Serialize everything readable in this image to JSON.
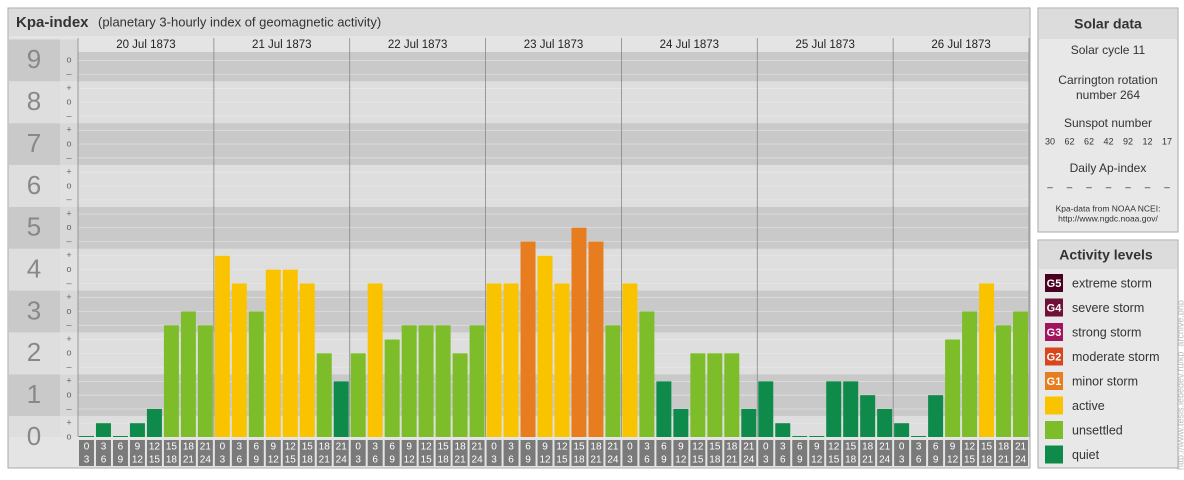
{
  "header": {
    "title": "Kpa-index",
    "subtitle": "(planetary 3-hourly index of geomagnetic activity)"
  },
  "chart_data": {
    "type": "bar",
    "ylim": [
      0,
      9.2
    ],
    "yticks": [
      0,
      1,
      2,
      3,
      4,
      5,
      6,
      7,
      8,
      9
    ],
    "minor_ticks": [
      {
        "value": 0,
        "label": "o"
      },
      {
        "value": 0.33,
        "label": "+"
      },
      {
        "value": 0.67,
        "label": "–"
      },
      {
        "value": 1,
        "label": "o"
      },
      {
        "value": 1.33,
        "label": "+"
      },
      {
        "value": 1.67,
        "label": "–"
      },
      {
        "value": 2,
        "label": "o"
      },
      {
        "value": 2.33,
        "label": "+"
      },
      {
        "value": 2.67,
        "label": "–"
      },
      {
        "value": 3,
        "label": "o"
      },
      {
        "value": 3.33,
        "label": "+"
      },
      {
        "value": 3.67,
        "label": "–"
      },
      {
        "value": 4,
        "label": "o"
      },
      {
        "value": 4.33,
        "label": "+"
      },
      {
        "value": 4.67,
        "label": "–"
      },
      {
        "value": 5,
        "label": "o"
      },
      {
        "value": 5.33,
        "label": "+"
      },
      {
        "value": 5.67,
        "label": "–"
      },
      {
        "value": 6,
        "label": "o"
      },
      {
        "value": 6.33,
        "label": "+"
      },
      {
        "value": 6.67,
        "label": "–"
      },
      {
        "value": 7,
        "label": "o"
      },
      {
        "value": 7.33,
        "label": "+"
      },
      {
        "value": 7.67,
        "label": "–"
      },
      {
        "value": 8,
        "label": "o"
      },
      {
        "value": 8.33,
        "label": "+"
      },
      {
        "value": 8.67,
        "label": "–"
      },
      {
        "value": 9,
        "label": "o"
      }
    ],
    "intervals": [
      {
        "from": 0,
        "to": 3
      },
      {
        "from": 3,
        "to": 6
      },
      {
        "from": 6,
        "to": 9
      },
      {
        "from": 9,
        "to": 12
      },
      {
        "from": 12,
        "to": 15
      },
      {
        "from": 15,
        "to": 18
      },
      {
        "from": 18,
        "to": 21
      },
      {
        "from": 21,
        "to": 24
      }
    ],
    "days": [
      {
        "date": "20 Jul 1873",
        "values": [
          0,
          0.33,
          0,
          0.33,
          0.67,
          2.67,
          3,
          2.67
        ],
        "colors": [
          "#0e8a4a",
          "#0e8a4a",
          "#0e8a4a",
          "#0e8a4a",
          "#0e8a4a",
          "#7dbd2a",
          "#7dbd2a",
          "#7dbd2a"
        ]
      },
      {
        "date": "21 Jul 1873",
        "values": [
          4.33,
          3.67,
          3,
          4,
          4,
          3.67,
          2,
          1.33
        ],
        "colors": [
          "#f9c300",
          "#f9c300",
          "#7dbd2a",
          "#f9c300",
          "#f9c300",
          "#f9c300",
          "#7dbd2a",
          "#0e8a4a"
        ]
      },
      {
        "date": "22 Jul 1873",
        "values": [
          2,
          3.67,
          2.33,
          2.67,
          2.67,
          2.67,
          2,
          2.67
        ],
        "colors": [
          "#7dbd2a",
          "#f9c300",
          "#7dbd2a",
          "#7dbd2a",
          "#7dbd2a",
          "#7dbd2a",
          "#7dbd2a",
          "#7dbd2a"
        ]
      },
      {
        "date": "23 Jul 1873",
        "values": [
          3.67,
          3.67,
          4.67,
          4.33,
          3.67,
          5,
          4.67,
          2.67
        ],
        "colors": [
          "#f9c300",
          "#f9c300",
          "#e77d1e",
          "#f9c300",
          "#f9c300",
          "#e77d1e",
          "#e77d1e",
          "#7dbd2a"
        ]
      },
      {
        "date": "24 Jul 1873",
        "values": [
          3.67,
          3,
          1.33,
          0.67,
          2,
          2,
          2,
          0.67
        ],
        "colors": [
          "#f9c300",
          "#7dbd2a",
          "#0e8a4a",
          "#0e8a4a",
          "#7dbd2a",
          "#7dbd2a",
          "#7dbd2a",
          "#0e8a4a"
        ]
      },
      {
        "date": "25 Jul 1873",
        "values": [
          1.33,
          0.33,
          0,
          0,
          1.33,
          1.33,
          1,
          0.67
        ],
        "colors": [
          "#0e8a4a",
          "#0e8a4a",
          "#0e8a4a",
          "#0e8a4a",
          "#0e8a4a",
          "#0e8a4a",
          "#0e8a4a",
          "#0e8a4a"
        ]
      },
      {
        "date": "26 Jul 1873",
        "values": [
          0.33,
          0,
          1,
          2.33,
          3,
          3.67,
          2.67,
          3
        ],
        "colors": [
          "#0e8a4a",
          "#0e8a4a",
          "#0e8a4a",
          "#7dbd2a",
          "#7dbd2a",
          "#f9c300",
          "#7dbd2a",
          "#7dbd2a"
        ]
      }
    ]
  },
  "solar": {
    "title": "Solar data",
    "cycle": "Solar cycle 11",
    "carrington": [
      "Carrington rotation",
      "number 264"
    ],
    "sunspot_title": "Sunspot number",
    "sunspots": [
      30,
      62,
      62,
      42,
      92,
      12,
      17
    ],
    "ap_title": "Daily Ap-index",
    "ap": [
      "–",
      "–",
      "–",
      "–",
      "–",
      "–",
      "–"
    ],
    "source": [
      "Kpa-data from NOAA NCEI:",
      "http://www.ngdc.noaa.gov/"
    ]
  },
  "legend": {
    "title": "Activity levels",
    "items": [
      {
        "badge": "G5",
        "label": "extreme storm",
        "color": "#4a0022"
      },
      {
        "badge": "G4",
        "label": "severe storm",
        "color": "#6e1038"
      },
      {
        "badge": "G3",
        "label": "strong storm",
        "color": "#a3145e"
      },
      {
        "badge": "G2",
        "label": "moderate storm",
        "color": "#d8461c"
      },
      {
        "badge": "G1",
        "label": "minor storm",
        "color": "#e77d1e"
      },
      {
        "label": "active",
        "color": "#f9c300"
      },
      {
        "label": "unsettled",
        "color": "#7dbd2a"
      },
      {
        "label": "quiet",
        "color": "#0e8a4a"
      }
    ]
  },
  "watermark": "http://www.tesis.lebedev.ru/kp_archive.php"
}
